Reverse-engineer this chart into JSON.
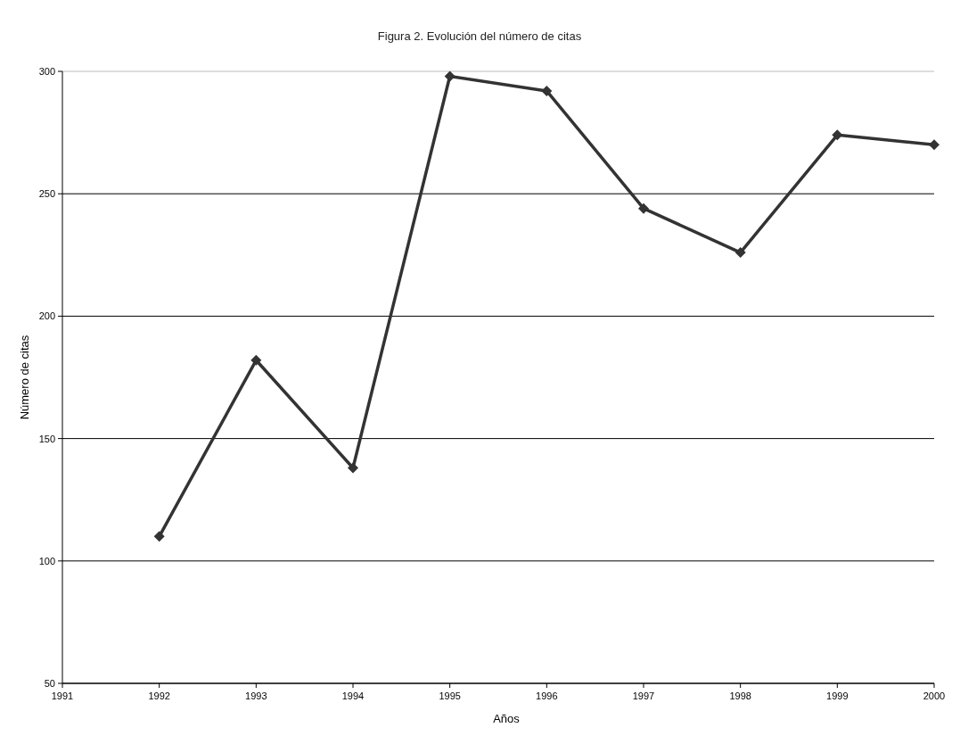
{
  "chart_data": {
    "type": "line",
    "title": "Figura 2. Evolución del número de citas",
    "xlabel": "Años",
    "ylabel": "Número de citas",
    "x": [
      1992,
      1993,
      1994,
      1995,
      1996,
      1997,
      1998,
      1999,
      2000
    ],
    "series": [
      {
        "color": "#333333",
        "values": [
          110,
          182,
          138,
          298,
          292,
          244,
          226,
          274,
          270
        ]
      }
    ],
    "xlim": [
      1991,
      2000
    ],
    "xticks": [
      1991,
      1992,
      1993,
      1994,
      1995,
      1996,
      1997,
      1998,
      1999,
      2000
    ],
    "ylim": [
      50,
      300
    ],
    "yticks": [
      50,
      100,
      150,
      200,
      250,
      300
    ],
    "grid": "y",
    "marker": "diamond",
    "line_style": "solid"
  }
}
